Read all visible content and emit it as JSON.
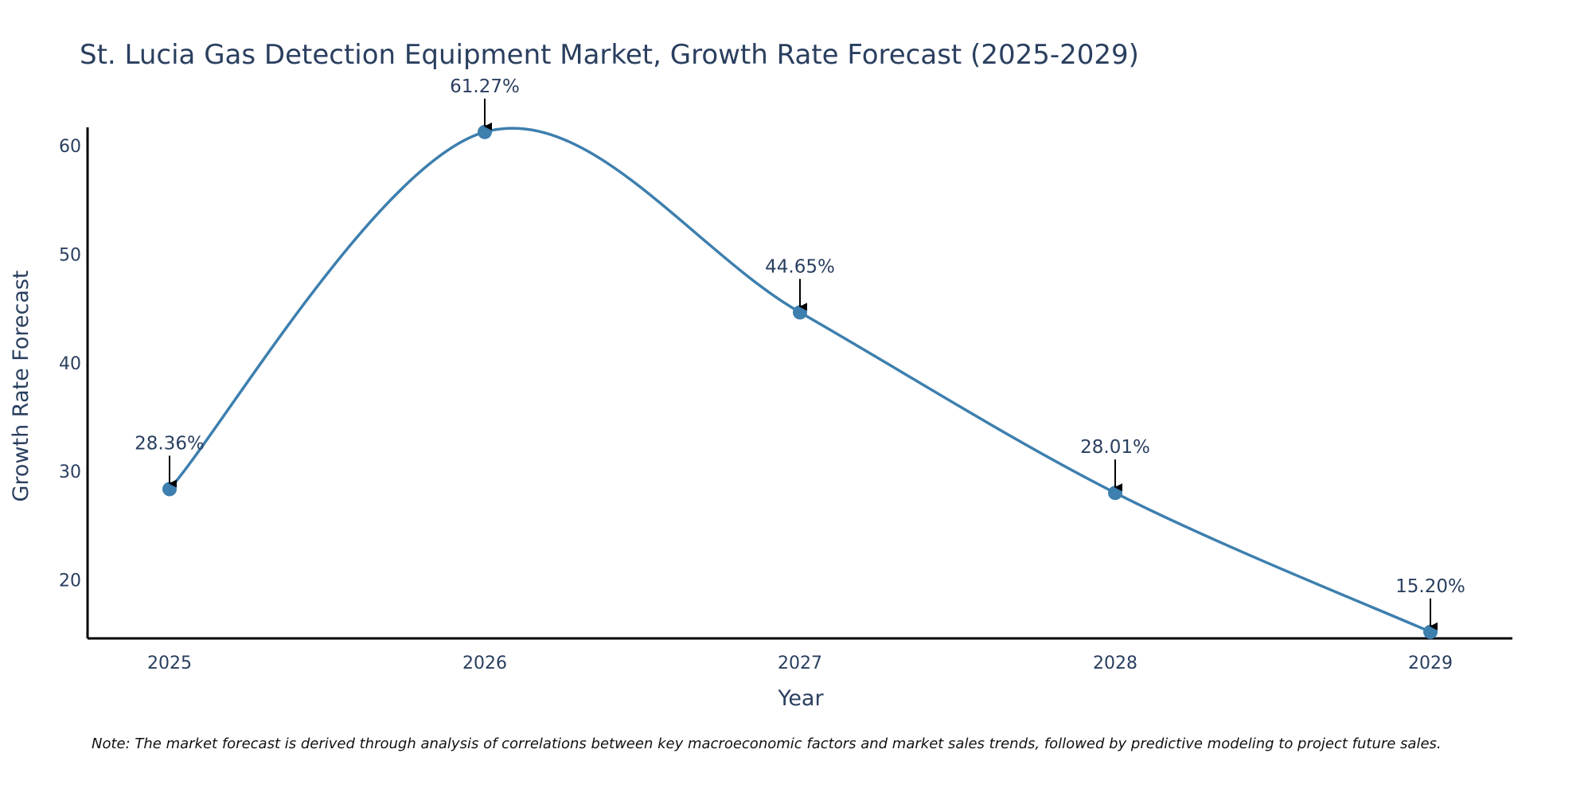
{
  "chart_data": {
    "type": "line",
    "title": "St. Lucia Gas Detection Equipment Market, Growth Rate Forecast (2025-2029)",
    "xlabel": "Year",
    "ylabel": "Growth Rate Forecast",
    "categories": [
      "2025",
      "2026",
      "2027",
      "2028",
      "2029"
    ],
    "values": [
      28.36,
      61.27,
      44.65,
      28.01,
      15.2
    ],
    "data_labels": [
      "28.36%",
      "61.27%",
      "44.65%",
      "28.01%",
      "15.20%"
    ],
    "yticks": [
      20,
      30,
      40,
      50,
      60
    ],
    "ylim": [
      14.6,
      61.7
    ],
    "grid": false,
    "line_color": "#3d7fae",
    "marker_color": "#3d7fae",
    "annotation_arrow_color": "#000000",
    "note": "Note: The market forecast is derived through analysis of correlations between key macroeconomic factors and market sales trends, followed by predictive modeling to project future sales."
  }
}
